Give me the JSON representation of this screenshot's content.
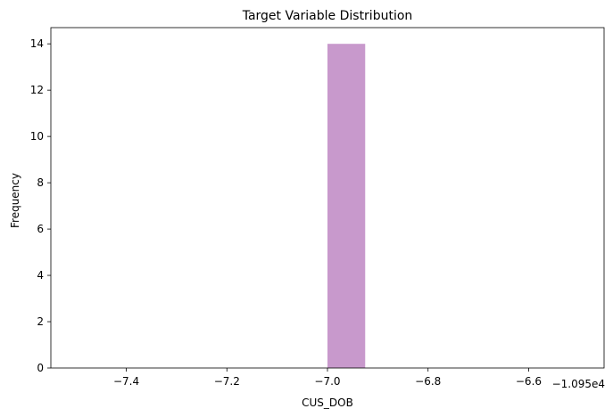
{
  "chart_data": {
    "type": "bar",
    "title": "Target Variable Distribution",
    "xlabel": "CUS_DOB",
    "ylabel": "Frequency",
    "offset_text": "−1.095e4",
    "xlim": [
      -7.55,
      -6.45
    ],
    "ylim": [
      0,
      14.7
    ],
    "xticks": [
      -7.4,
      -7.2,
      -7.0,
      -6.8,
      -6.6
    ],
    "xtick_labels": [
      "−7.4",
      "−7.2",
      "−7.0",
      "−6.8",
      "−6.6"
    ],
    "yticks": [
      0,
      2,
      4,
      6,
      8,
      10,
      12,
      14
    ],
    "ytick_labels": [
      "0",
      "2",
      "4",
      "6",
      "8",
      "10",
      "12",
      "14"
    ],
    "bars": [
      {
        "x_start": -7.0,
        "x_end": -6.925,
        "count": 14
      }
    ],
    "bar_color": "#c899cc",
    "grid": false,
    "legend": "none"
  }
}
